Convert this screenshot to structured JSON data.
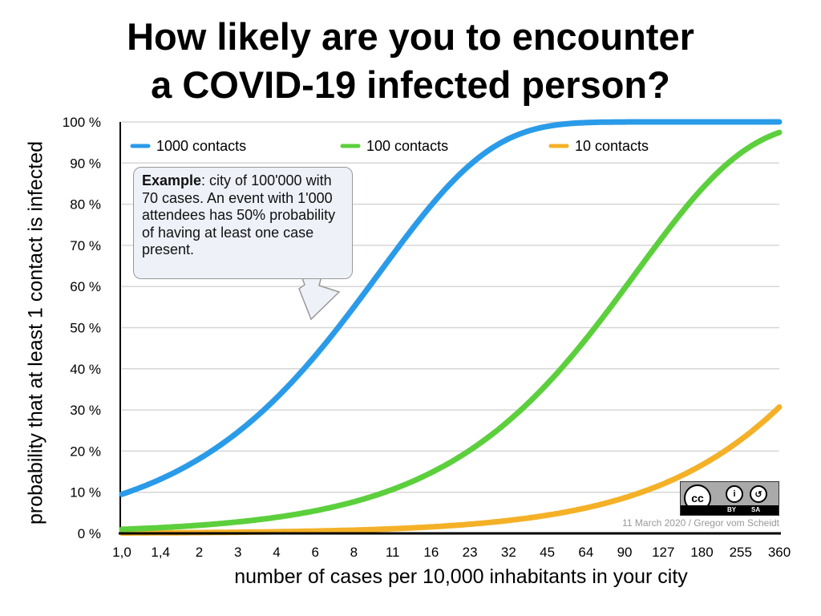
{
  "title_line1": "How likely are you to encounter",
  "title_line2": "a COVID-19 infected person?",
  "callout": {
    "bold": "Example",
    "text": ": city of 100'000 with 70 cases. An event with 1'000 attendees has 50% probability of having at least one case present."
  },
  "credit": "11 March 2020 / Gregor vom Scheidt",
  "license": {
    "cc": "cc",
    "by": "BY",
    "sa": "SA"
  },
  "chart_data": {
    "type": "line",
    "title": "How likely are you to encounter a COVID-19 infected person?",
    "xlabel": "number of cases per 10,000 inhabitants in your city",
    "ylabel": "probability that at least 1 contact is infected",
    "x_scale": "log",
    "x": [
      "1,0",
      "1,4",
      "2",
      "3",
      "4",
      "6",
      "8",
      "11",
      "16",
      "23",
      "32",
      "45",
      "64",
      "90",
      "127",
      "180",
      "255",
      "360"
    ],
    "x_values": [
      1,
      1.4,
      2,
      3,
      4,
      6,
      8,
      11,
      16,
      23,
      32,
      45,
      64,
      90,
      127,
      180,
      255,
      360
    ],
    "ylim": [
      0,
      100
    ],
    "yticks": [
      "0 %",
      "10 %",
      "20 %",
      "30 %",
      "40 %",
      "50 %",
      "60 %",
      "70 %",
      "80 %",
      "90 %",
      "100 %"
    ],
    "grid": true,
    "legend_position": "top",
    "series": [
      {
        "name": "1000 contacts",
        "contacts": 1000,
        "color": "#2a9be8",
        "values": [
          9.5,
          13.1,
          18.1,
          25.9,
          33.0,
          45.1,
          55.1,
          66.7,
          79.8,
          90.0,
          95.9,
          98.9,
          99.8,
          100,
          100,
          100,
          100,
          100
        ]
      },
      {
        "name": "100 contacts",
        "contacts": 100,
        "color": "#5ccf3c",
        "values": [
          1.0,
          1.4,
          2.0,
          3.0,
          3.9,
          5.8,
          7.7,
          10.4,
          14.8,
          20.6,
          27.4,
          36.3,
          47.4,
          59.6,
          72.2,
          83.7,
          92.4,
          97.4
        ]
      },
      {
        "name": "10 contacts",
        "contacts": 10,
        "color": "#f4b128",
        "values": [
          0.1,
          0.14,
          0.2,
          0.3,
          0.4,
          0.6,
          0.8,
          1.1,
          1.6,
          2.3,
          3.2,
          4.4,
          6.2,
          8.6,
          12.0,
          16.5,
          22.6,
          30.7
        ]
      }
    ]
  }
}
